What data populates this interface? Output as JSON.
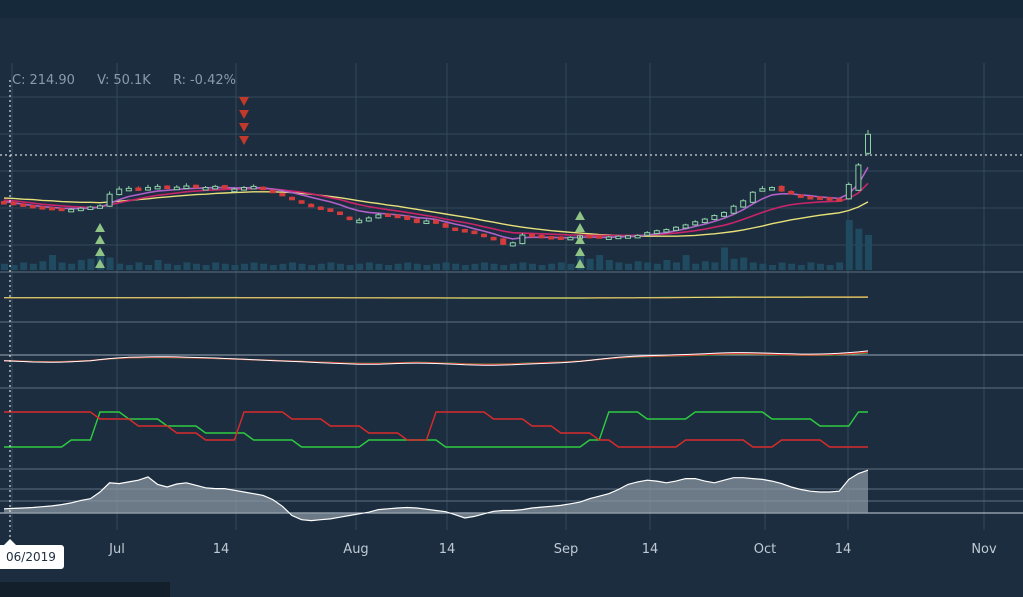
{
  "readout": {
    "close_label": "C:",
    "close_value": "214.90",
    "volume_label": "V:",
    "volume_value": "50.1K",
    "return_label": "R:",
    "return_value": "-0.42%"
  },
  "crosshair_date": "06/2019",
  "chart_data": {
    "type": "line",
    "x_axis": {
      "tick_labels": [
        "Jul",
        "14",
        "Aug",
        "14",
        "Sep",
        "14",
        "Oct",
        "14",
        "Nov"
      ]
    },
    "price": {
      "ylim": [
        180,
        225
      ],
      "close": [
        197.5,
        197.0,
        196.5,
        196.2,
        196.0,
        195.8,
        195.5,
        195.6,
        195.9,
        196.2,
        196.5,
        199.5,
        200.8,
        201.0,
        200.8,
        201.2,
        201.5,
        201.0,
        201.3,
        201.6,
        201.4,
        201.2,
        201.5,
        201.0,
        200.8,
        201.2,
        201.5,
        201.0,
        200.2,
        199.5,
        198.5,
        197.6,
        196.8,
        196.0,
        195.5,
        194.5,
        193.0,
        192.8,
        193.4,
        194.2,
        194.0,
        193.6,
        193.0,
        192.2,
        192.6,
        192.0,
        191.0,
        190.5,
        190.2,
        189.4,
        188.6,
        187.8,
        186.6,
        187.0,
        189.0,
        188.7,
        188.5,
        188.3,
        188.2,
        188.4,
        188.8,
        188.6,
        188.3,
        188.5,
        188.7,
        188.8,
        188.9,
        189.6,
        190.1,
        190.4,
        191.0,
        191.6,
        192.4,
        193.1,
        194.0,
        194.8,
        196.4,
        197.8,
        200.0,
        200.9,
        201.2,
        200.3,
        199.6,
        198.7,
        198.5,
        198.3,
        198.1,
        198.0,
        202.0,
        207.0,
        214.9
      ],
      "candle_open": [
        197.6,
        197.4,
        197.0,
        196.6,
        196.3,
        196.1,
        195.9,
        195.5,
        195.5,
        195.7,
        196.0,
        196.4,
        199.4,
        200.7,
        201.1,
        200.6,
        201.0,
        201.6,
        200.9,
        201.3,
        201.8,
        201.2,
        201.0,
        201.7,
        200.8,
        200.6,
        201.5,
        201.3,
        200.5,
        199.7,
        198.7,
        197.8,
        196.9,
        196.2,
        195.7,
        194.9,
        193.6,
        192.2,
        192.6,
        193.4,
        194.4,
        194.1,
        193.8,
        193.1,
        192.0,
        192.8,
        191.9,
        190.8,
        190.4,
        190.0,
        189.2,
        188.4,
        188.0,
        186.2,
        186.8,
        189.2,
        188.9,
        188.6,
        188.5,
        188.0,
        188.3,
        188.9,
        188.8,
        188.1,
        188.4,
        188.5,
        188.9,
        189.0,
        189.4,
        189.8,
        190.2,
        190.8,
        191.6,
        192.2,
        193.0,
        193.8,
        194.6,
        196.2,
        197.4,
        200.4,
        200.7,
        201.5,
        200.2,
        199.3,
        198.9,
        198.8,
        198.6,
        198.3,
        198.3,
        200.5,
        210.0
      ],
      "high": [
        197.9,
        197.6,
        197.2,
        196.8,
        196.5,
        196.2,
        196.0,
        195.9,
        196.2,
        196.5,
        196.9,
        200.2,
        201.5,
        201.6,
        201.6,
        201.9,
        202.1,
        201.8,
        201.8,
        202.3,
        202.0,
        201.6,
        201.9,
        201.9,
        201.2,
        201.6,
        202.0,
        201.5,
        200.7,
        199.9,
        198.9,
        198.0,
        197.2,
        196.4,
        195.9,
        195.1,
        193.8,
        193.4,
        193.8,
        194.6,
        194.7,
        194.4,
        194.1,
        193.3,
        193.0,
        193.1,
        192.1,
        191.0,
        190.6,
        190.2,
        189.4,
        188.6,
        188.2,
        187.3,
        189.5,
        189.4,
        189.2,
        188.8,
        188.7,
        188.7,
        189.1,
        189.2,
        189.0,
        188.8,
        188.9,
        189.0,
        189.2,
        190.0,
        190.4,
        190.7,
        191.3,
        191.9,
        192.8,
        193.4,
        194.3,
        195.1,
        196.8,
        198.2,
        200.3,
        201.6,
        201.5,
        201.8,
        200.5,
        199.5,
        199.1,
        199.0,
        198.8,
        198.5,
        202.5,
        207.5,
        216.0
      ],
      "low": [
        197.2,
        196.8,
        196.3,
        196.0,
        195.8,
        195.6,
        195.3,
        195.3,
        195.3,
        195.5,
        195.8,
        196.2,
        199.2,
        200.5,
        200.6,
        200.4,
        200.8,
        200.8,
        200.7,
        201.1,
        201.2,
        201.0,
        200.8,
        200.9,
        200.6,
        200.4,
        201.2,
        200.8,
        200.0,
        199.3,
        198.3,
        197.4,
        196.6,
        195.8,
        195.3,
        194.3,
        192.8,
        192.0,
        192.4,
        193.2,
        193.8,
        193.4,
        192.8,
        192.0,
        191.8,
        191.8,
        190.8,
        190.3,
        190.0,
        189.2,
        188.4,
        187.6,
        186.4,
        186.0,
        186.6,
        188.5,
        188.3,
        188.1,
        188.0,
        187.8,
        188.1,
        188.4,
        188.1,
        187.9,
        188.2,
        188.3,
        188.7,
        188.8,
        189.2,
        189.6,
        190.0,
        190.6,
        191.4,
        192.0,
        192.8,
        193.6,
        194.4,
        196.0,
        197.2,
        200.2,
        200.5,
        200.1,
        199.4,
        198.5,
        198.3,
        198.1,
        197.9,
        197.8,
        198.1,
        200.3,
        209.5
      ],
      "ema_fast": [
        197.6,
        197.3,
        196.9,
        196.6,
        196.3,
        196.1,
        195.9,
        195.8,
        195.8,
        195.9,
        196.1,
        197.1,
        198.1,
        198.9,
        199.4,
        199.9,
        200.3,
        200.5,
        200.7,
        200.9,
        201.0,
        201.1,
        201.2,
        201.2,
        201.1,
        201.1,
        201.2,
        201.1,
        200.8,
        200.4,
        199.9,
        199.3,
        198.7,
        198.1,
        197.5,
        196.8,
        195.9,
        195.2,
        194.8,
        194.6,
        194.4,
        194.2,
        193.9,
        193.5,
        193.3,
        193.0,
        192.4,
        191.8,
        191.3,
        190.6,
        190.0,
        189.3,
        188.5,
        188.0,
        188.3,
        188.4,
        188.4,
        188.4,
        188.3,
        188.3,
        188.4,
        188.5,
        188.4,
        188.4,
        188.5,
        188.6,
        188.7,
        189.0,
        189.3,
        189.6,
        190.1,
        190.6,
        191.2,
        191.8,
        192.5,
        193.3,
        194.3,
        195.5,
        197.0,
        198.3,
        199.3,
        199.6,
        199.6,
        199.3,
        199.1,
        198.8,
        198.6,
        198.4,
        199.6,
        202.1,
        206.4
      ],
      "ema_slow": [
        198.0,
        197.8,
        197.5,
        197.2,
        196.9,
        196.7,
        196.5,
        196.3,
        196.2,
        196.1,
        196.2,
        196.7,
        197.3,
        197.8,
        198.3,
        198.8,
        199.2,
        199.5,
        199.8,
        200.1,
        200.3,
        200.5,
        200.6,
        200.7,
        200.8,
        200.8,
        200.9,
        200.9,
        200.8,
        200.6,
        200.3,
        200.0,
        199.6,
        199.1,
        198.6,
        198.1,
        197.4,
        196.8,
        196.3,
        195.9,
        195.5,
        195.2,
        194.8,
        194.4,
        194.0,
        193.6,
        193.1,
        192.6,
        192.2,
        191.7,
        191.1,
        190.6,
        190.0,
        189.6,
        189.5,
        189.4,
        189.3,
        189.2,
        189.1,
        189.0,
        189.0,
        188.9,
        188.9,
        188.9,
        188.9,
        188.9,
        188.9,
        189.0,
        189.1,
        189.3,
        189.5,
        189.8,
        190.1,
        190.5,
        191.0,
        191.5,
        192.2,
        193.0,
        193.9,
        194.8,
        195.6,
        196.3,
        196.8,
        197.1,
        197.3,
        197.5,
        197.6,
        197.7,
        198.4,
        199.8,
        202.3
      ],
      "sma": [
        198.5,
        198.4,
        198.2,
        198.1,
        197.9,
        197.8,
        197.6,
        197.5,
        197.4,
        197.4,
        197.3,
        197.5,
        197.7,
        197.9,
        198.1,
        198.3,
        198.6,
        198.8,
        199.0,
        199.2,
        199.4,
        199.5,
        199.7,
        199.8,
        199.9,
        200.0,
        200.1,
        200.1,
        200.1,
        200.0,
        199.9,
        199.7,
        199.5,
        199.2,
        198.9,
        198.6,
        198.2,
        197.8,
        197.4,
        197.1,
        196.7,
        196.4,
        196.0,
        195.6,
        195.2,
        194.8,
        194.4,
        194.0,
        193.6,
        193.2,
        192.7,
        192.3,
        191.8,
        191.4,
        191.0,
        190.7,
        190.4,
        190.1,
        189.9,
        189.7,
        189.5,
        189.3,
        189.1,
        189.0,
        188.9,
        188.8,
        188.7,
        188.7,
        188.7,
        188.7,
        188.7,
        188.8,
        188.9,
        189.1,
        189.3,
        189.6,
        189.9,
        190.3,
        190.8,
        191.3,
        191.9,
        192.4,
        192.9,
        193.3,
        193.7,
        194.1,
        194.4,
        194.7,
        195.3,
        196.2,
        197.5
      ],
      "buy_signals": [
        {
          "x": 10,
          "count": 4
        },
        {
          "x": 60,
          "count": 5
        }
      ],
      "sell_signals": [
        {
          "x": 25,
          "count": 4
        }
      ]
    },
    "volume": [
      5,
      4,
      6,
      5,
      7,
      12,
      6,
      5,
      8,
      9,
      14,
      10,
      5,
      4,
      6,
      4,
      8,
      5,
      4,
      6,
      5,
      4,
      6,
      5,
      4,
      5,
      6,
      5,
      4,
      5,
      6,
      5,
      4,
      5,
      6,
      5,
      4,
      5,
      6,
      5,
      4,
      5,
      6,
      5,
      4,
      5,
      6,
      5,
      4,
      5,
      6,
      5,
      4,
      5,
      6,
      5,
      4,
      5,
      6,
      5,
      14,
      9,
      12,
      8,
      6,
      5,
      7,
      6,
      5,
      8,
      6,
      12,
      5,
      7,
      6,
      18,
      9,
      10,
      6,
      5,
      4,
      6,
      5,
      4,
      6,
      5,
      4,
      6,
      40,
      33,
      28
    ],
    "indicators": {
      "oscillator_a": [
        0.2,
        0.2,
        0.2,
        0.21,
        0.21,
        0.21,
        0.22,
        0.22,
        0.22,
        0.23,
        0.23,
        0.24,
        0.25,
        0.26,
        0.27,
        0.28,
        0.28,
        0.29,
        0.29,
        0.29,
        0.3,
        0.3,
        0.3,
        0.3,
        0.3,
        0.29,
        0.29,
        0.28,
        0.28,
        0.27,
        0.26,
        0.25,
        0.24,
        0.23,
        0.22,
        0.2,
        0.18,
        0.16,
        0.14,
        0.13,
        0.12,
        0.11,
        0.1,
        0.09,
        0.08,
        0.07,
        0.06,
        0.05,
        0.04,
        0.03,
        0.02,
        0.01,
        0.0,
        -0.01,
        -0.01,
        -0.01,
        0.0,
        0.0,
        0.01,
        0.02,
        0.03,
        0.05,
        0.07,
        0.1,
        0.13,
        0.16,
        0.2,
        0.25,
        0.32,
        0.4,
        0.48,
        0.56,
        0.64,
        0.7,
        0.76,
        0.8,
        0.84,
        0.88,
        0.9,
        0.92,
        0.93,
        0.94,
        0.95,
        0.95,
        0.96,
        0.96,
        0.96,
        0.97,
        0.98,
        1.0,
        1.05
      ],
      "oscillator_b": [
        -0.1,
        -0.15,
        -0.22,
        -0.28,
        -0.3,
        -0.32,
        -0.3,
        -0.25,
        -0.18,
        -0.1,
        0.05,
        0.2,
        0.3,
        0.38,
        0.42,
        0.45,
        0.46,
        0.46,
        0.44,
        0.4,
        0.36,
        0.32,
        0.28,
        0.22,
        0.16,
        0.1,
        0.04,
        -0.02,
        -0.08,
        -0.14,
        -0.2,
        -0.26,
        -0.32,
        -0.38,
        -0.44,
        -0.5,
        -0.56,
        -0.6,
        -0.62,
        -0.6,
        -0.56,
        -0.5,
        -0.46,
        -0.44,
        -0.46,
        -0.5,
        -0.56,
        -0.62,
        -0.68,
        -0.72,
        -0.74,
        -0.74,
        -0.72,
        -0.68,
        -0.62,
        -0.56,
        -0.5,
        -0.44,
        -0.38,
        -0.3,
        -0.2,
        -0.05,
        0.1,
        0.25,
        0.38,
        0.48,
        0.56,
        0.62,
        0.66,
        0.7,
        0.74,
        0.78,
        0.84,
        0.9,
        0.96,
        1.02,
        1.05,
        1.06,
        1.04,
        1.0,
        0.96,
        0.92,
        0.88,
        0.85,
        0.84,
        0.86,
        0.9,
        0.96,
        1.05,
        1.15,
        1.3
      ]
    },
    "crossover": {
      "up": [
        2,
        2,
        2,
        2,
        2,
        2,
        2,
        3,
        3,
        3,
        7,
        7,
        7,
        6,
        6,
        6,
        6,
        5,
        5,
        5,
        5,
        4,
        4,
        4,
        4,
        4,
        3,
        3,
        3,
        3,
        3,
        2,
        2,
        2,
        2,
        2,
        2,
        2,
        3,
        3,
        3,
        3,
        3,
        3,
        3,
        3,
        2,
        2,
        2,
        2,
        2,
        2,
        2,
        2,
        2,
        2,
        2,
        2,
        2,
        2,
        2,
        3,
        3,
        7,
        7,
        7,
        7,
        6,
        6,
        6,
        6,
        6,
        7,
        7,
        7,
        7,
        7,
        7,
        7,
        7,
        6,
        6,
        6,
        6,
        6,
        5,
        5,
        5,
        5,
        7,
        7
      ],
      "down": [
        7,
        7,
        7,
        7,
        7,
        7,
        7,
        7,
        7,
        7,
        6,
        6,
        6,
        6,
        5,
        5,
        5,
        5,
        4,
        4,
        4,
        3,
        3,
        3,
        3,
        7,
        7,
        7,
        7,
        7,
        6,
        6,
        6,
        6,
        5,
        5,
        5,
        5,
        4,
        4,
        4,
        4,
        3,
        3,
        3,
        7,
        7,
        7,
        7,
        7,
        7,
        6,
        6,
        6,
        6,
        5,
        5,
        5,
        4,
        4,
        4,
        4,
        3,
        3,
        2,
        2,
        2,
        2,
        2,
        2,
        2,
        3,
        3,
        3,
        3,
        3,
        3,
        3,
        2,
        2,
        2,
        3,
        3,
        3,
        3,
        3,
        2,
        2,
        2,
        2,
        2
      ]
    },
    "momentum": [
      1.0,
      1.1,
      1.2,
      1.3,
      1.5,
      1.7,
      2.0,
      2.4,
      3.0,
      3.4,
      5.0,
      7.2,
      7.0,
      7.4,
      7.8,
      8.6,
      6.8,
      6.2,
      6.9,
      7.2,
      6.6,
      6.0,
      5.8,
      5.8,
      5.4,
      5.0,
      4.6,
      4.2,
      3.2,
      1.6,
      -0.6,
      -1.6,
      -1.8,
      -1.6,
      -1.4,
      -1.0,
      -0.6,
      -0.2,
      0.2,
      0.8,
      1.0,
      1.2,
      1.3,
      1.2,
      0.9,
      0.6,
      0.3,
      -0.4,
      -1.2,
      -0.8,
      -0.2,
      0.4,
      0.6,
      0.6,
      0.8,
      1.2,
      1.4,
      1.6,
      1.8,
      2.2,
      2.6,
      3.4,
      4.0,
      4.6,
      5.6,
      6.8,
      7.4,
      7.8,
      7.6,
      7.2,
      7.6,
      8.2,
      8.2,
      7.6,
      7.2,
      7.8,
      8.4,
      8.4,
      8.2,
      8.0,
      7.6,
      7.0,
      6.2,
      5.6,
      5.2,
      5.0,
      5.0,
      5.2,
      8.0,
      9.4,
      10.2
    ]
  }
}
